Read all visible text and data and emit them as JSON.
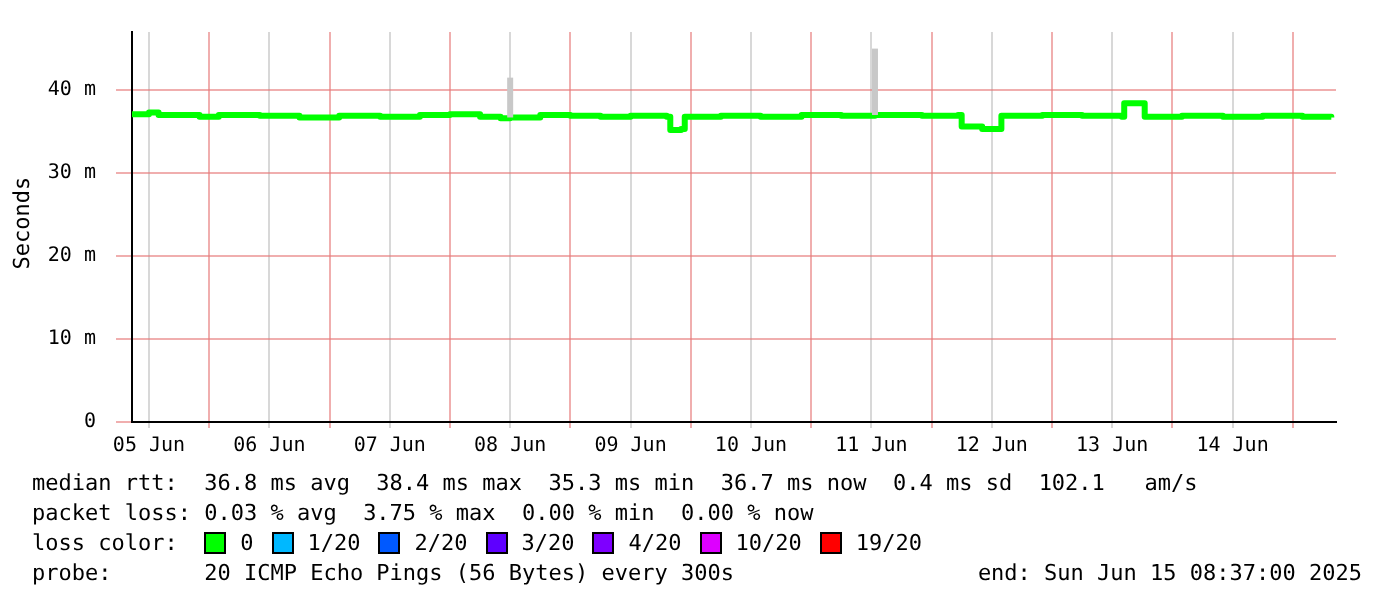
{
  "chart_data": {
    "type": "step",
    "ylabel": "Seconds",
    "legend_title": "loss color:",
    "legend": "bottom",
    "grid": true,
    "xlim": [
      "2025-06-05T08:37",
      "2025-06-15T08:37"
    ],
    "xticks": [
      {
        "value": "2025-06-05T12:00",
        "label": "05 Jun"
      },
      {
        "value": "2025-06-06T00:00",
        "label": null
      },
      {
        "value": "2025-06-06T12:00",
        "label": "06 Jun"
      },
      {
        "value": "2025-06-07T00:00",
        "label": null
      },
      {
        "value": "2025-06-07T12:00",
        "label": "07 Jun"
      },
      {
        "value": "2025-06-08T00:00",
        "label": null
      },
      {
        "value": "2025-06-08T12:00",
        "label": "08 Jun"
      },
      {
        "value": "2025-06-09T00:00",
        "label": null
      },
      {
        "value": "2025-06-09T12:00",
        "label": "09 Jun"
      },
      {
        "value": "2025-06-10T00:00",
        "label": null
      },
      {
        "value": "2025-06-10T12:00",
        "label": "10 Jun"
      },
      {
        "value": "2025-06-11T00:00",
        "label": null
      },
      {
        "value": "2025-06-11T12:00",
        "label": "11 Jun"
      },
      {
        "value": "2025-06-12T00:00",
        "label": null
      },
      {
        "value": "2025-06-12T12:00",
        "label": "12 Jun"
      },
      {
        "value": "2025-06-13T00:00",
        "label": null
      },
      {
        "value": "2025-06-13T12:00",
        "label": "13 Jun"
      },
      {
        "value": "2025-06-14T00:00",
        "label": null
      },
      {
        "value": "2025-06-14T12:00",
        "label": "14 Jun"
      },
      {
        "value": "2025-06-15T00:00",
        "label": null
      }
    ],
    "ylim": [
      0,
      47
    ],
    "yticks": [
      0,
      {
        "value": 10,
        "label": "10 m"
      },
      {
        "value": 20,
        "label": "20 m"
      },
      {
        "value": 30,
        "label": "30 m"
      },
      {
        "value": 40,
        "label": "40 m"
      }
    ],
    "series": [
      {
        "name": "0",
        "color": "#00ff00",
        "x": [
          "2025-06-05T08:37",
          "2025-06-05T12:00",
          "2025-06-05T13:55",
          "2025-06-05T22:05",
          "2025-06-05T22:19",
          "2025-06-06T01:55",
          "2025-06-06T10:05",
          "2025-06-06T18:00",
          "2025-06-07T01:55",
          "2025-06-07T10:05",
          "2025-06-07T18:00",
          "2025-06-08T00:00",
          "2025-06-08T06:00",
          "2025-06-08T10:05",
          "2025-06-08T12:00",
          "2025-06-08T18:00",
          "2025-06-09T00:00",
          "2025-06-09T06:00",
          "2025-06-09T12:00",
          "2025-06-09T19:12",
          "2025-06-09T19:55",
          "2025-06-09T22:05",
          "2025-06-09T22:48",
          "2025-06-10T06:00",
          "2025-06-10T13:55",
          "2025-06-10T22:05",
          "2025-06-10T22:48",
          "2025-06-11T06:00",
          "2025-06-11T12:43",
          "2025-06-11T13:55",
          "2025-06-11T22:05",
          "2025-06-12T05:17",
          "2025-06-12T06:00",
          "2025-06-12T10:05",
          "2025-06-12T13:12",
          "2025-06-12T13:55",
          "2025-06-12T22:05",
          "2025-06-13T06:00",
          "2025-06-13T13:55",
          "2025-06-13T14:24",
          "2025-06-13T18:00",
          "2025-06-13T18:29",
          "2025-06-14T01:55",
          "2025-06-14T10:05",
          "2025-06-14T18:00",
          "2025-06-15T01:55",
          "2025-06-15T07:41"
        ],
        "values": [
          37.1,
          37.3,
          37.0,
          36.8,
          36.8,
          37.0,
          36.9,
          36.7,
          36.9,
          36.8,
          37.0,
          37.1,
          36.8,
          36.6,
          36.7,
          37.0,
          36.9,
          36.8,
          36.9,
          36.8,
          35.2,
          35.3,
          36.8,
          36.9,
          36.8,
          37.0,
          37.0,
          36.9,
          37.0,
          37.0,
          36.9,
          37.0,
          35.6,
          35.3,
          35.3,
          36.9,
          37.0,
          36.9,
          36.8,
          38.4,
          38.4,
          36.8,
          36.9,
          36.8,
          36.9,
          36.8,
          36.7
        ],
        "lower": [
          null,
          null,
          null,
          null,
          null,
          null,
          null,
          null,
          null,
          null,
          null,
          null,
          null,
          null,
          36.7,
          null,
          null,
          null,
          null,
          null,
          null,
          null,
          null,
          null,
          null,
          null,
          null,
          null,
          37.0,
          null,
          null,
          null,
          null,
          null,
          null,
          null,
          null,
          null,
          null,
          null,
          null,
          null,
          null,
          null,
          null,
          null,
          null
        ],
        "upper": [
          null,
          null,
          null,
          null,
          null,
          null,
          null,
          null,
          null,
          null,
          null,
          null,
          null,
          null,
          41.5,
          null,
          null,
          null,
          null,
          null,
          null,
          null,
          null,
          null,
          null,
          null,
          null,
          null,
          45.0,
          null,
          null,
          null,
          null,
          null,
          null,
          null,
          null,
          null,
          null,
          null,
          null,
          null,
          null,
          null,
          null,
          null,
          null
        ]
      },
      {
        "name": "1/20",
        "color": "#00b8ff"
      },
      {
        "name": "2/20",
        "color": "#0059ff"
      },
      {
        "name": "3/20",
        "color": "#5e00ff"
      },
      {
        "name": "4/20",
        "color": "#7e00ff"
      },
      {
        "name": "10/20",
        "color": "#dd00ff"
      },
      {
        "name": "19/20",
        "color": "#ff0000"
      }
    ],
    "annotations": [
      "median rtt:  36.8 ms avg  38.4 ms max  35.3 ms min  36.7 ms now  0.4 ms sd  102.1   am/s",
      "packet loss: 0.03 % avg  3.75 % max  0.00 % min  0.00 % now",
      "probe:       20 ICMP Echo Pings (56 Bytes) every 300s",
      "end: Sun Jun 15 08:37:00 2025"
    ]
  }
}
